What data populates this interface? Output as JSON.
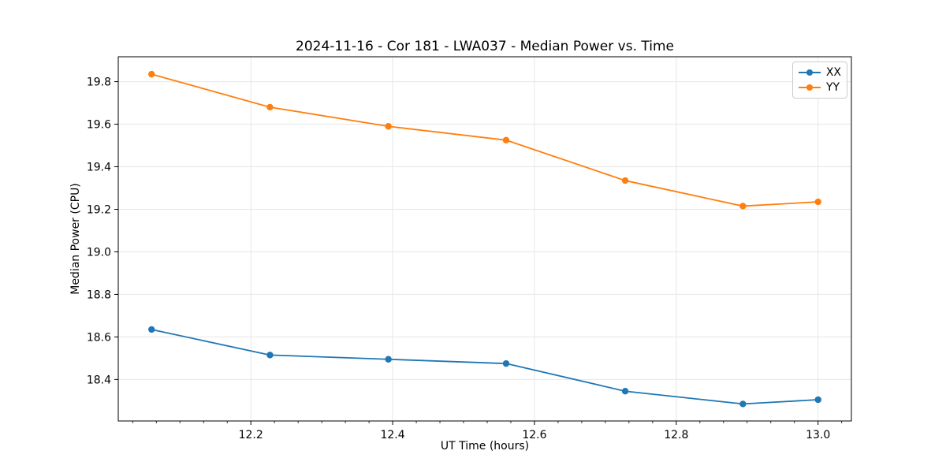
{
  "chart_data": {
    "type": "line",
    "title": "2024-11-16 - Cor 181 - LWA037 - Median Power vs. Time",
    "xlabel": "UT Time (hours)",
    "ylabel": "Median Power (CPU)",
    "x": [
      12.06,
      12.227,
      12.394,
      12.56,
      12.728,
      12.894,
      13.0
    ],
    "series": [
      {
        "name": "XX",
        "color": "#1f77b4",
        "values": [
          18.635,
          18.515,
          18.495,
          18.475,
          18.345,
          18.285,
          18.305
        ]
      },
      {
        "name": "YY",
        "color": "#ff7f0e",
        "values": [
          19.835,
          19.68,
          19.59,
          19.525,
          19.335,
          19.215,
          19.235
        ]
      }
    ],
    "xlim": [
      12.013,
      13.047
    ],
    "ylim": [
      18.205,
      19.917
    ],
    "x_ticks": {
      "values": [
        12.2,
        12.4,
        12.6,
        12.8,
        13.0
      ],
      "labels": [
        "12.2",
        "12.4",
        "12.6",
        "12.8",
        "13.0"
      ]
    },
    "y_ticks": {
      "values": [
        18.4,
        18.6,
        18.8,
        19.0,
        19.2,
        19.4,
        19.6,
        19.8
      ],
      "labels": [
        "18.4",
        "18.6",
        "18.8",
        "19.0",
        "19.2",
        "19.4",
        "19.6",
        "19.8"
      ]
    },
    "x_minor_divisions": 6,
    "grid": true,
    "legend_position": "top-right",
    "colors": {
      "grid": "#e6e6e6",
      "spine": "#000000",
      "background": "#ffffff"
    }
  }
}
